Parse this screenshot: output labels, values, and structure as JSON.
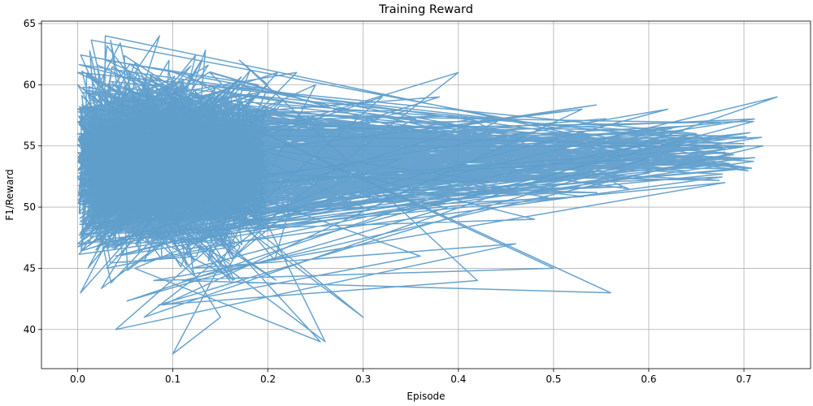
{
  "chart_data": {
    "type": "line",
    "title": "Training Reward",
    "xlabel": "Episode",
    "ylabel": "F1/Reward",
    "xlim": [
      -0.038,
      0.77
    ],
    "ylim": [
      36.8,
      65.2
    ],
    "xticks": [
      0.0,
      0.1,
      0.2,
      0.3,
      0.4,
      0.5,
      0.6,
      0.7
    ],
    "xtick_labels": [
      "0.0",
      "0.1",
      "0.2",
      "0.3",
      "0.4",
      "0.5",
      "0.6",
      "0.7"
    ],
    "yticks": [
      40,
      45,
      50,
      55,
      60,
      65
    ],
    "ytick_labels": [
      "40",
      "45",
      "50",
      "55",
      "60",
      "65"
    ],
    "grid": true,
    "series": [
      {
        "color": "#5f9ecb",
        "x": [
          0.0,
          0.086,
          0.02,
          0.13,
          0.003,
          0.21,
          0.05,
          0.38,
          0.01,
          0.62,
          0.04,
          0.735,
          0.07,
          0.4,
          0.02,
          0.25,
          0.1,
          0.15,
          0.0,
          0.3,
          0.06,
          0.72,
          0.11,
          0.56,
          0.03,
          0.19,
          0.0,
          0.68,
          0.08,
          0.5,
          0.14,
          0.26,
          0.02,
          0.53,
          0.09,
          0.36,
          0.0,
          0.71,
          0.12,
          0.46,
          0.04,
          0.32,
          0.01,
          0.6,
          0.085,
          0.42,
          0.17,
          0.2,
          0.045,
          0.3,
          0.0,
          0.65,
          0.1,
          0.55,
          0.03,
          0.23,
          0.0,
          0.39,
          0.07,
          0.48,
          0.12,
          0.7,
          0.02,
          0.34,
          0.06,
          0.255,
          0.09,
          0.44,
          0.0,
          0.16,
          0.04
        ],
        "y": [
          54,
          64,
          48,
          62,
          43,
          61,
          57,
          59,
          50,
          58,
          46,
          59,
          41,
          61,
          52,
          60,
          38,
          41,
          60,
          41,
          55,
          55,
          44,
          43,
          62,
          60,
          47,
          52,
          44,
          45,
          58,
          39,
          53,
          58,
          42,
          46,
          56,
          57,
          45,
          47,
          40,
          59,
          51,
          54,
          42,
          44,
          62,
          60,
          49,
          50,
          61,
          56,
          47,
          53,
          45,
          61,
          58,
          56,
          48,
          49,
          56,
          55,
          51,
          54,
          45,
          39,
          53,
          52,
          57,
          44,
          55
        ]
      }
    ]
  }
}
